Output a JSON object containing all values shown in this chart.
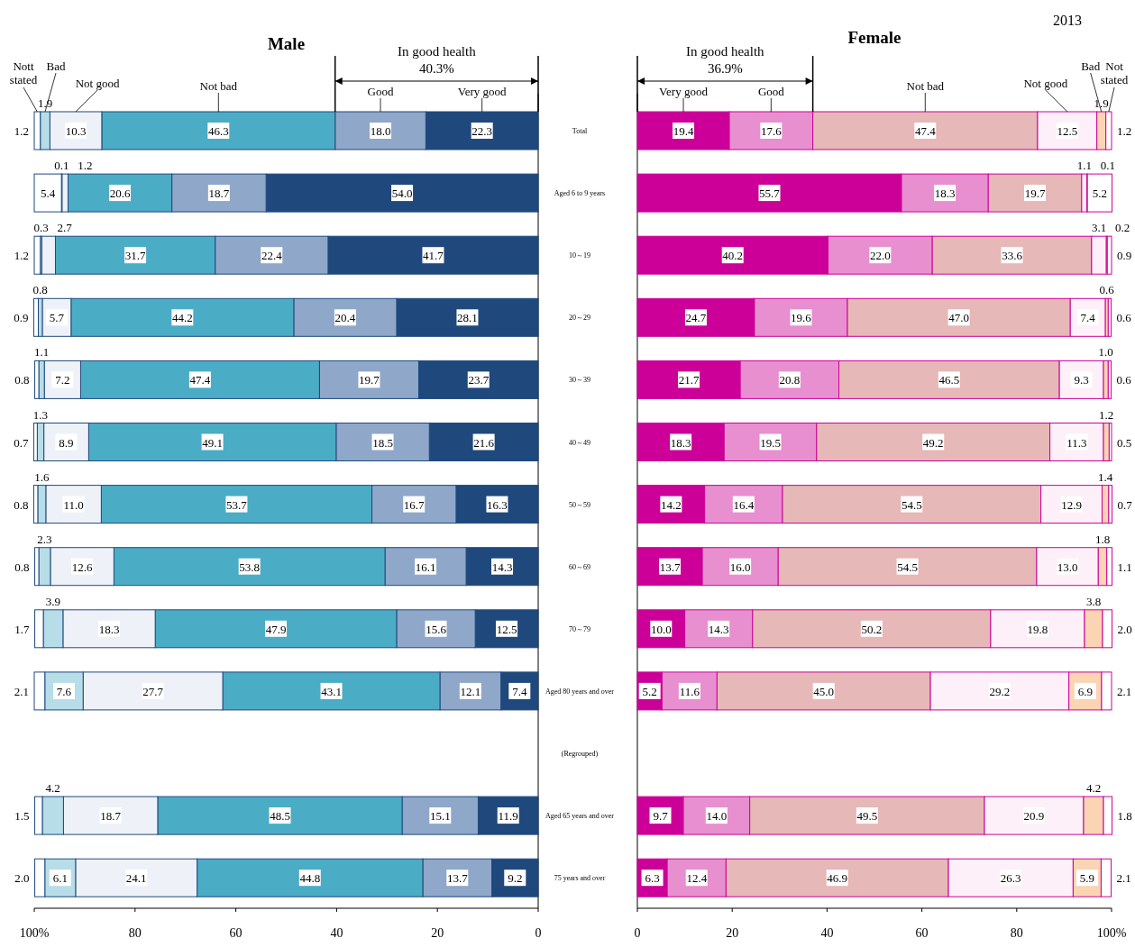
{
  "chart_data": [
    {
      "type": "bar",
      "orientation": "horizontal",
      "stacked": true,
      "title": "Male",
      "categories": [
        "Total",
        "Aged 6 to 9 years",
        "10～19",
        "20～29",
        "30～39",
        "40～49",
        "50～59",
        "60～69",
        "70～79",
        "Aged 80 years and over",
        null,
        "Aged 65 years and over",
        "75 years and over"
      ],
      "series": [
        {
          "name": "Very good",
          "color": "#1f497d",
          "values": [
            22.3,
            54.0,
            41.7,
            28.1,
            23.7,
            21.6,
            16.3,
            14.3,
            12.5,
            7.4,
            null,
            11.9,
            9.2
          ],
          "value_labels": [
            "22.3",
            "54.0",
            "41.7",
            "28.1",
            "23.7",
            "21.6",
            "16.3",
            "14.3",
            "12.5",
            "7.4",
            null,
            "11.9",
            "9.2"
          ]
        },
        {
          "name": "Good",
          "color": "#8fa7c9",
          "values": [
            18.0,
            18.7,
            22.4,
            20.4,
            19.7,
            18.5,
            16.7,
            16.1,
            15.6,
            12.1,
            null,
            15.1,
            13.7
          ],
          "value_labels": [
            "18.0",
            "18.7",
            "22.4",
            "20.4",
            "19.7",
            "18.5",
            "16.7",
            "16.1",
            "15.6",
            "12.1",
            null,
            "15.1",
            "13.7"
          ]
        },
        {
          "name": "Not bad",
          "color": "#4bacc6",
          "values": [
            46.3,
            20.6,
            31.7,
            44.2,
            47.4,
            49.1,
            53.7,
            53.8,
            47.9,
            43.1,
            null,
            48.5,
            44.8
          ],
          "value_labels": [
            "46.3",
            "20.6",
            "31.7",
            "44.2",
            "47.4",
            "49.1",
            "53.7",
            "53.8",
            "47.9",
            "43.1",
            null,
            "48.5",
            "44.8"
          ]
        },
        {
          "name": "Not good",
          "color": "#eef2f8",
          "values": [
            10.3,
            1.2,
            2.7,
            5.7,
            7.2,
            8.9,
            11.0,
            12.6,
            18.3,
            27.7,
            null,
            18.7,
            24.1
          ],
          "value_labels": [
            "10.3",
            "1.2",
            "2.7",
            "5.7",
            "7.2",
            "8.9",
            "11.0",
            "12.6",
            "18.3",
            "27.7",
            null,
            "18.7",
            "24.1"
          ]
        },
        {
          "name": "Bad",
          "color": "#b7dde8",
          "values": [
            1.9,
            0.1,
            0.3,
            0.8,
            1.1,
            1.3,
            1.6,
            2.3,
            3.9,
            7.6,
            null,
            4.2,
            6.1
          ],
          "value_labels": [
            "1.9",
            "0.1",
            "0.3",
            "0.8",
            "1.1",
            "1.3",
            "1.6",
            "2.3",
            "3.9",
            "7.6",
            null,
            "4.2",
            "6.1"
          ]
        },
        {
          "name": "Nott stated",
          "color": "#ffffff",
          "values": [
            1.2,
            5.4,
            1.2,
            0.9,
            0.8,
            0.7,
            0.8,
            0.8,
            1.7,
            2.1,
            null,
            1.5,
            2.0
          ],
          "value_labels": [
            "1.2",
            "5.4",
            "1.2",
            "0.9",
            "0.8",
            "0.7",
            "0.8",
            "0.8",
            "1.7",
            "2.1",
            null,
            "1.5",
            "2.0"
          ]
        }
      ],
      "xlim": [
        100,
        0
      ],
      "xticks": [
        {
          "value": 100,
          "label": "100%"
        },
        80,
        60,
        40,
        20,
        0
      ],
      "annotations": [
        "In good health 40.3%",
        "(Regrouped)"
      ]
    },
    {
      "type": "bar",
      "orientation": "horizontal",
      "stacked": true,
      "title": "Female",
      "series": [
        {
          "name": "Very good",
          "color": "#cc0099",
          "values": [
            19.4,
            55.7,
            40.2,
            24.7,
            21.7,
            18.3,
            14.2,
            13.7,
            10.0,
            5.2,
            null,
            9.7,
            6.3
          ],
          "value_labels": [
            "19.4",
            "55.7",
            "40.2",
            "24.7",
            "21.7",
            "18.3",
            "14.2",
            "13.7",
            "10.0",
            "5.2",
            null,
            "9.7",
            "6.3"
          ]
        },
        {
          "name": "Good",
          "color": "#e88fd0",
          "values": [
            17.6,
            18.3,
            22.0,
            19.6,
            20.8,
            19.5,
            16.4,
            16.0,
            14.3,
            11.6,
            null,
            14.0,
            12.4
          ],
          "value_labels": [
            "17.6",
            "18.3",
            "22.0",
            "19.6",
            "20.8",
            "19.5",
            "16.4",
            "16.0",
            "14.3",
            "11.6",
            null,
            "14.0",
            "12.4"
          ]
        },
        {
          "name": "Not bad",
          "color": "#e6b8b7",
          "values": [
            47.4,
            19.7,
            33.6,
            47.0,
            46.5,
            49.2,
            54.5,
            54.5,
            50.2,
            45.0,
            null,
            49.5,
            46.9
          ],
          "value_labels": [
            "47.4",
            "19.7",
            "33.6",
            "47.0",
            "46.5",
            "49.2",
            "54.5",
            "54.5",
            "50.2",
            "45.0",
            null,
            "49.5",
            "46.9"
          ]
        },
        {
          "name": "Not good",
          "color": "#fdf0f8",
          "values": [
            12.5,
            1.1,
            3.1,
            7.4,
            9.3,
            11.3,
            12.9,
            13.0,
            19.8,
            29.2,
            null,
            20.9,
            26.3
          ],
          "value_labels": [
            "12.5",
            "1.1",
            "3.1",
            "7.4",
            "9.3",
            "11.3",
            "12.9",
            "13.0",
            "19.8",
            "29.2",
            null,
            "20.9",
            "26.3"
          ]
        },
        {
          "name": "Bad",
          "color": "#fbd4b4",
          "values": [
            1.9,
            0.1,
            0.2,
            0.6,
            1.0,
            1.2,
            1.4,
            1.8,
            3.8,
            6.9,
            null,
            4.2,
            5.9
          ],
          "value_labels": [
            "1.9",
            "0.1",
            "0.2",
            "0.6",
            "1.0",
            "1.2",
            "1.4",
            "1.8",
            "3.8",
            "6.9",
            null,
            "4.2",
            "5.9"
          ]
        },
        {
          "name": "Not stated",
          "color": "#ffffff",
          "values": [
            1.2,
            5.2,
            0.9,
            0.6,
            0.6,
            0.5,
            0.7,
            1.1,
            2.0,
            2.1,
            null,
            1.8,
            2.1
          ],
          "value_labels": [
            "1.2",
            "5.2",
            "0.9",
            "0.6",
            "0.6",
            "0.5",
            "0.7",
            "1.1",
            "2.0",
            "2.1",
            null,
            "1.8",
            "2.1"
          ]
        }
      ],
      "xlim": [
        0,
        100
      ],
      "xticks": [
        0,
        20,
        40,
        60,
        80,
        {
          "value": 100,
          "label": "100%"
        }
      ],
      "tick_labels": "x",
      "annotations": [
        "In good health 36.9%",
        "2013"
      ]
    }
  ]
}
